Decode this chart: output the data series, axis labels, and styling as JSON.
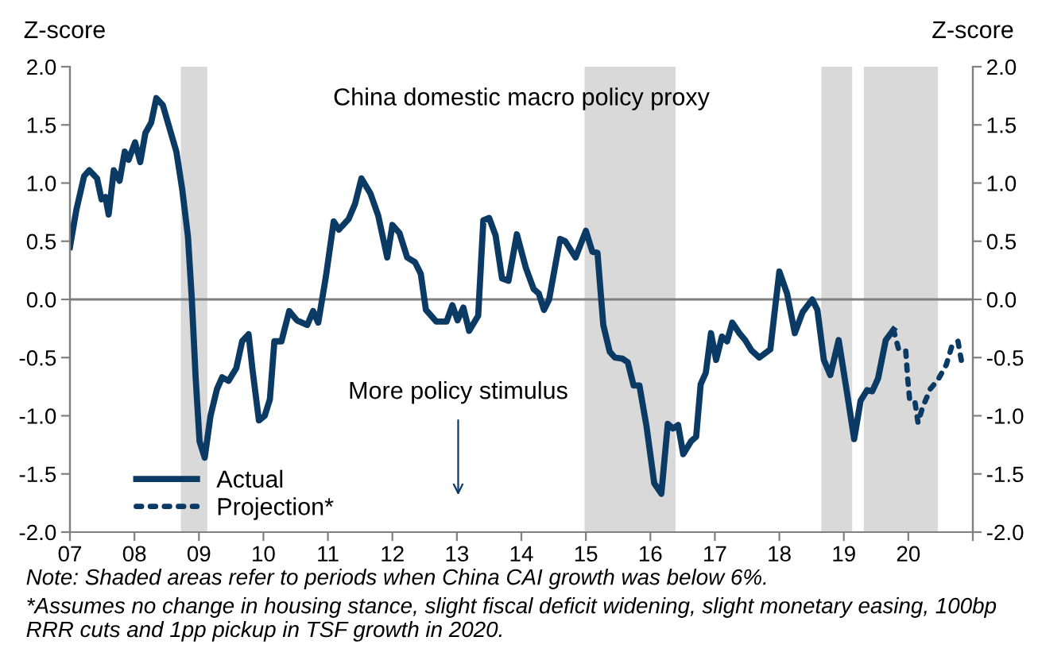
{
  "chart_data": {
    "type": "line",
    "title": "China domestic macro policy proxy",
    "ylabel": "Z-score",
    "y2label": "Z-score",
    "annotations": [
      "More policy stimulus",
      "Note: Shaded areas refer to periods when China CAI growth was below 6%.",
      "*Assumes no change in housing stance, slight fiscal deficit widening, slight monetary easing, 100bp RRR cuts and 1pp pickup in TSF growth in 2020."
    ],
    "series": [
      {
        "name": "Actual",
        "color": "#0b3a64",
        "line_style": "solid",
        "x": [
          2007.0,
          2007.1,
          2007.22,
          2007.3,
          2007.42,
          2007.49,
          2007.55,
          2007.6,
          2007.68,
          2007.77,
          2007.85,
          2007.91,
          2008.01,
          2008.09,
          2008.17,
          2008.26,
          2008.34,
          2008.44,
          2008.65,
          2008.74,
          2008.83,
          2008.89,
          2008.95,
          2009.01,
          2009.09,
          2009.18,
          2009.28,
          2009.36,
          2009.46,
          2009.58,
          2009.67,
          2009.77,
          2009.83,
          2009.93,
          2010.02,
          2010.1,
          2010.17,
          2010.28,
          2010.4,
          2010.52,
          2010.68,
          2010.77,
          2010.85,
          2010.97,
          2011.09,
          2011.17,
          2011.32,
          2011.42,
          2011.52,
          2011.66,
          2011.78,
          2011.92,
          2012.0,
          2012.11,
          2012.23,
          2012.35,
          2012.44,
          2012.52,
          2012.68,
          2012.84,
          2012.93,
          2013.01,
          2013.1,
          2013.19,
          2013.33,
          2013.41,
          2013.5,
          2013.6,
          2013.7,
          2013.8,
          2013.93,
          2014.07,
          2014.19,
          2014.27,
          2014.35,
          2014.43,
          2014.6,
          2014.68,
          2014.84,
          2015.0,
          2015.1,
          2015.18,
          2015.27,
          2015.37,
          2015.45,
          2015.57,
          2015.65,
          2015.74,
          2015.83,
          2015.94,
          2016.06,
          2016.17,
          2016.27,
          2016.35,
          2016.43,
          2016.51,
          2016.63,
          2016.71,
          2016.78,
          2016.86,
          2016.94,
          2017.02,
          2017.11,
          2017.19,
          2017.27,
          2017.38,
          2017.47,
          2017.57,
          2017.69,
          2017.86,
          2017.92,
          2018.0,
          2018.12,
          2018.24,
          2018.36,
          2018.51,
          2018.59,
          2018.69,
          2018.79,
          2018.92,
          2019.06,
          2019.16,
          2019.26,
          2019.36,
          2019.44,
          2019.53,
          2019.65,
          2019.77
        ],
        "values": [
          0.45,
          0.77,
          1.06,
          1.11,
          1.04,
          0.86,
          0.88,
          0.73,
          1.11,
          1.02,
          1.27,
          1.2,
          1.35,
          1.18,
          1.43,
          1.52,
          1.73,
          1.67,
          1.27,
          0.95,
          0.54,
          0.0,
          -0.68,
          -1.22,
          -1.36,
          -1.0,
          -0.77,
          -0.67,
          -0.7,
          -0.59,
          -0.36,
          -0.3,
          -0.6,
          -1.04,
          -1.0,
          -0.86,
          -0.36,
          -0.36,
          -0.1,
          -0.18,
          -0.22,
          -0.1,
          -0.2,
          0.2,
          0.67,
          0.6,
          0.69,
          0.82,
          1.04,
          0.91,
          0.72,
          0.36,
          0.64,
          0.57,
          0.36,
          0.32,
          0.22,
          -0.09,
          -0.19,
          -0.19,
          -0.05,
          -0.18,
          -0.07,
          -0.27,
          -0.14,
          0.68,
          0.7,
          0.55,
          0.18,
          0.16,
          0.56,
          0.27,
          0.09,
          0.05,
          -0.09,
          0.0,
          0.52,
          0.5,
          0.36,
          0.59,
          0.41,
          0.4,
          -0.22,
          -0.45,
          -0.5,
          -0.51,
          -0.54,
          -0.74,
          -0.74,
          -1.09,
          -1.58,
          -1.67,
          -1.07,
          -1.11,
          -1.08,
          -1.33,
          -1.22,
          -1.18,
          -0.73,
          -0.63,
          -0.29,
          -0.52,
          -0.32,
          -0.36,
          -0.2,
          -0.29,
          -0.35,
          -0.44,
          -0.5,
          -0.43,
          -0.14,
          0.24,
          0.05,
          -0.29,
          -0.11,
          0.0,
          -0.09,
          -0.52,
          -0.65,
          -0.35,
          -0.84,
          -1.2,
          -0.87,
          -0.78,
          -0.79,
          -0.68,
          -0.35,
          -0.26
        ]
      },
      {
        "name": "Projection*",
        "color": "#0b3a64",
        "line_style": "dotted",
        "x": [
          2019.77,
          2019.85,
          2019.96,
          2019.99,
          2020.02,
          2020.1,
          2020.15,
          2020.22,
          2020.34,
          2020.46,
          2020.59,
          2020.67,
          2020.77,
          2020.83
        ],
        "values": [
          -0.26,
          -0.43,
          -0.44,
          -0.68,
          -0.86,
          -0.87,
          -1.06,
          -0.93,
          -0.77,
          -0.69,
          -0.56,
          -0.41,
          -0.36,
          -0.55
        ]
      }
    ],
    "bands": [
      {
        "axis": "x",
        "from": 2008.72,
        "to": 2009.13,
        "color": "#d9d9d9"
      },
      {
        "axis": "x",
        "from": 2014.98,
        "to": 2016.39,
        "color": "#d9d9d9"
      },
      {
        "axis": "x",
        "from": 2018.65,
        "to": 2019.13,
        "color": "#d9d9d9"
      },
      {
        "axis": "x",
        "from": 2019.31,
        "to": 2020.46,
        "color": "#d9d9d9"
      }
    ],
    "ref_lines": [
      {
        "axis": "y",
        "value": 0,
        "color": "#808080"
      }
    ],
    "xlim": [
      2007,
      2021
    ],
    "xticks": [
      {
        "value": 2007,
        "label": "07"
      },
      {
        "value": 2008,
        "label": "08"
      },
      {
        "value": 2009,
        "label": "09"
      },
      {
        "value": 2010,
        "label": "10"
      },
      {
        "value": 2011,
        "label": "11"
      },
      {
        "value": 2012,
        "label": "12"
      },
      {
        "value": 2013,
        "label": "13"
      },
      {
        "value": 2014,
        "label": "14"
      },
      {
        "value": 2015,
        "label": "15"
      },
      {
        "value": 2016,
        "label": "16"
      },
      {
        "value": 2017,
        "label": "17"
      },
      {
        "value": 2018,
        "label": "18"
      },
      {
        "value": 2019,
        "label": "19"
      },
      {
        "value": 2020,
        "label": "20"
      },
      {
        "value": 2021,
        "label": null
      }
    ],
    "ylim": [
      -2.0,
      2.0
    ],
    "yticks": [
      {
        "value": -2,
        "label": "-2.0"
      },
      {
        "value": -1.5,
        "label": "-1.5"
      },
      {
        "value": -1,
        "label": "-1.0"
      },
      {
        "value": -0.5,
        "label": "-0.5"
      },
      {
        "value": 0,
        "label": "0.0"
      },
      {
        "value": 0.5,
        "label": "0.5"
      },
      {
        "value": 1,
        "label": "1.0"
      },
      {
        "value": 1.5,
        "label": "1.5"
      },
      {
        "value": 2,
        "label": "2.0"
      }
    ],
    "y2lim": [
      -2.0,
      2.0
    ],
    "y2ticks": [
      {
        "value": -2,
        "label": "-2.0"
      },
      {
        "value": -1.5,
        "label": "-1.5"
      },
      {
        "value": -1,
        "label": "-1.0"
      },
      {
        "value": -0.5,
        "label": "-0.5"
      },
      {
        "value": 0,
        "label": "0.0"
      },
      {
        "value": 0.5,
        "label": "0.5"
      },
      {
        "value": 1,
        "label": "1.0"
      },
      {
        "value": 1.5,
        "label": "1.5"
      },
      {
        "value": 2,
        "label": "2.0"
      }
    ],
    "grid": false,
    "legend": "bottom left",
    "marker": "none"
  }
}
